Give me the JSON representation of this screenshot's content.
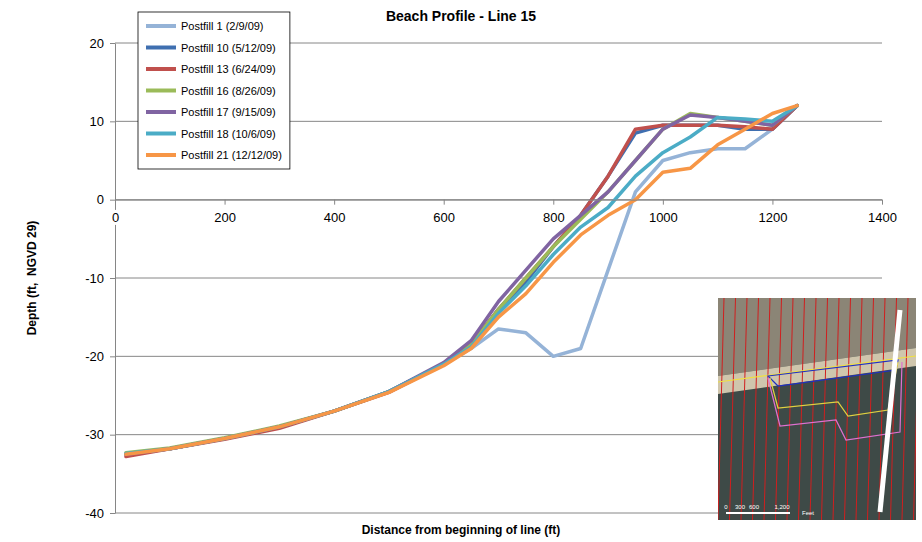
{
  "chart_data": {
    "type": "line",
    "title": "Beach Profile - Line 15",
    "x_label": "Distance from beginning of line (ft)",
    "y_label": "Depth (ft,  NGVD 29)",
    "x": [
      20,
      100,
      200,
      300,
      400,
      500,
      600,
      650,
      700,
      750,
      800,
      850,
      900,
      950,
      1000,
      1050,
      1100,
      1150,
      1200,
      1245
    ],
    "series": [
      {
        "name": "Postfill 1 (2/9/09)",
        "color": "#95b3d7",
        "values": [
          -32.5,
          -31.8,
          -30.5,
          -29,
          -27,
          -24.5,
          -21,
          -19,
          -16.5,
          -17,
          -20,
          -19,
          -9,
          1,
          5,
          6,
          6.5,
          6.5,
          9,
          12
        ]
      },
      {
        "name": "Postfill 10 (5/12/09)",
        "color": "#3f6fb0",
        "values": [
          -32.5,
          -31.8,
          -30.5,
          -29,
          -27,
          -24.5,
          -21,
          -18.5,
          -14,
          -10.5,
          -6,
          -2,
          3,
          8.5,
          9.5,
          9.5,
          9.5,
          9,
          9,
          12
        ]
      },
      {
        "name": "Postfill 13 (6/24/09)",
        "color": "#c0504d",
        "values": [
          -32.8,
          -31.8,
          -30.6,
          -29.2,
          -27,
          -24.6,
          -21,
          -18.5,
          -14,
          -10,
          -6,
          -2,
          3,
          9,
          9.5,
          9.5,
          9.5,
          9.3,
          9,
          12
        ]
      },
      {
        "name": "Postfill 16 (8/26/09)",
        "color": "#9bbb59",
        "values": [
          -32.3,
          -31.7,
          -30.4,
          -28.9,
          -27,
          -24.5,
          -21,
          -18.5,
          -14,
          -10,
          -6,
          -2.5,
          1,
          5,
          9,
          11,
          10.5,
          10,
          9.5,
          12
        ]
      },
      {
        "name": "Postfill 17 (9/15/09)",
        "color": "#8064a2",
        "values": [
          -32.5,
          -31.8,
          -30.5,
          -29,
          -27,
          -24.5,
          -20.8,
          -18,
          -13,
          -9,
          -5,
          -2,
          1,
          5,
          9,
          10.8,
          10.5,
          10,
          9.5,
          12
        ]
      },
      {
        "name": "Postfill 18 (10/6/09)",
        "color": "#4bacc6",
        "values": [
          -32.4,
          -31.8,
          -30.5,
          -29,
          -27,
          -24.5,
          -21,
          -18.8,
          -14.5,
          -11,
          -7,
          -3.5,
          -1,
          3,
          6,
          8,
          10.5,
          10.3,
          10,
          12
        ]
      },
      {
        "name": "Postfill 21 (12/12/09)",
        "color": "#f79646",
        "values": [
          -32.5,
          -31.8,
          -30.5,
          -29,
          -27,
          -24.6,
          -21.2,
          -19,
          -15,
          -12,
          -8,
          -4.5,
          -2,
          0,
          3.5,
          4,
          7,
          9,
          11,
          12
        ]
      }
    ],
    "xlim": [
      0,
      1400
    ],
    "xticks": [
      0,
      200,
      400,
      600,
      800,
      1000,
      1200,
      1400
    ],
    "ylim": [
      -40,
      20
    ],
    "yticks": [
      -40,
      -30,
      -20,
      -10,
      0,
      10,
      20
    ],
    "grid": true,
    "legend": "upper left",
    "annotations": [
      "0",
      "300",
      "600",
      "1,200",
      "Feet"
    ]
  }
}
